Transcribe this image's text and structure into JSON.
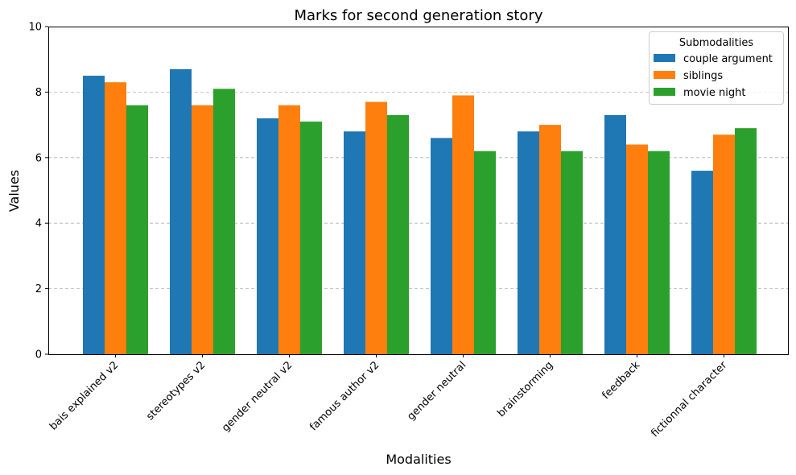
{
  "chart_data": {
    "type": "bar",
    "title": "Marks for second generation story",
    "xlabel": "Modalities",
    "ylabel": "Values",
    "ylim": [
      0,
      10
    ],
    "yticks": [
      0,
      2,
      4,
      6,
      8,
      10
    ],
    "grid": "horizontal dashed",
    "legend": {
      "title": "Submodalities",
      "position": "top-right"
    },
    "categories": [
      "bais explained v2",
      "stereotypes v2",
      "gender neutral v2",
      "famous author v2",
      "gender neutral",
      "brainstorming",
      "feedback",
      "fictionnal character"
    ],
    "series": [
      {
        "name": "couple argument",
        "color": "#1f77b4",
        "values": [
          8.5,
          8.7,
          7.2,
          6.8,
          6.6,
          6.8,
          7.3,
          5.6
        ]
      },
      {
        "name": "siblings",
        "color": "#ff7f0e",
        "values": [
          8.3,
          7.6,
          7.6,
          7.7,
          7.9,
          7.0,
          6.4,
          6.7
        ]
      },
      {
        "name": "movie night",
        "color": "#2ca02c",
        "values": [
          7.6,
          8.1,
          7.1,
          7.3,
          6.2,
          6.2,
          6.2,
          6.9
        ]
      }
    ]
  }
}
